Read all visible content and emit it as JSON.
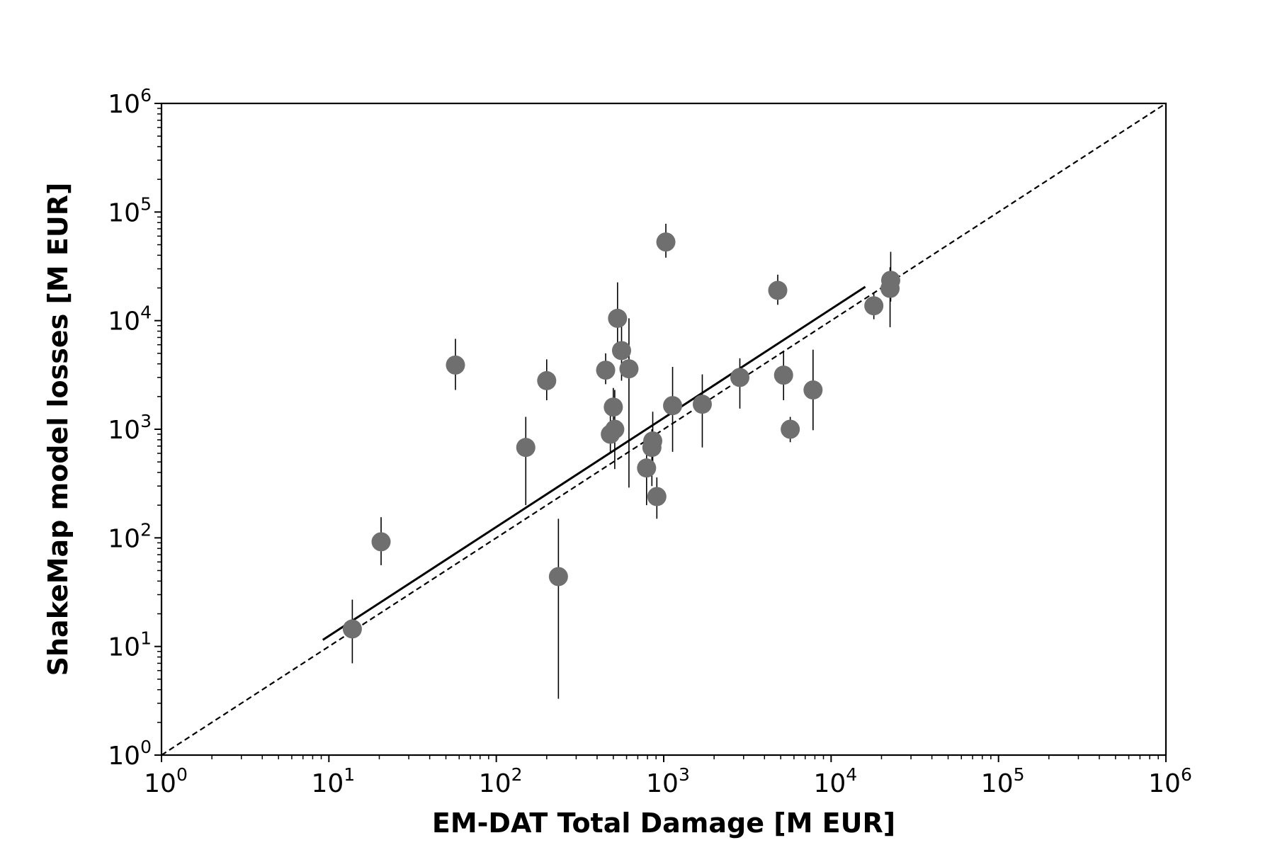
{
  "chart_data": {
    "type": "scatter",
    "xlabel": "EM-DAT Total Damage [M EUR]",
    "ylabel": "ShakeMap model losses [M EUR]",
    "xscale": "log",
    "yscale": "log",
    "xlim": [
      1,
      1000000
    ],
    "ylim": [
      1,
      1000000
    ],
    "x_tick_labels": [
      {
        "value": 1,
        "base": "10",
        "exp": "0"
      },
      {
        "value": 10,
        "base": "10",
        "exp": "1"
      },
      {
        "value": 100,
        "base": "10",
        "exp": "2"
      },
      {
        "value": 1000,
        "base": "10",
        "exp": "3"
      },
      {
        "value": 10000,
        "base": "10",
        "exp": "4"
      },
      {
        "value": 100000,
        "base": "10",
        "exp": "5"
      },
      {
        "value": 1000000,
        "base": "10",
        "exp": "6"
      }
    ],
    "y_tick_labels": [
      {
        "value": 1,
        "base": "10",
        "exp": "0"
      },
      {
        "value": 10,
        "base": "10",
        "exp": "1"
      },
      {
        "value": 100,
        "base": "10",
        "exp": "2"
      },
      {
        "value": 1000,
        "base": "10",
        "exp": "3"
      },
      {
        "value": 10000,
        "base": "10",
        "exp": "4"
      },
      {
        "value": 100000,
        "base": "10",
        "exp": "5"
      },
      {
        "value": 1000000,
        "base": "10",
        "exp": "6"
      }
    ],
    "grid": false,
    "marker_color": "#6f6f6f",
    "points": [
      {
        "x": 13.8,
        "y": 14.5,
        "ylo": 7,
        "yhi": 27
      },
      {
        "x": 20.5,
        "y": 92,
        "ylo": 56,
        "yhi": 155
      },
      {
        "x": 57,
        "y": 3900,
        "ylo": 2300,
        "yhi": 6800
      },
      {
        "x": 150,
        "y": 680,
        "ylo": 200,
        "yhi": 1300
      },
      {
        "x": 200,
        "y": 2800,
        "ylo": 1850,
        "yhi": 4400
      },
      {
        "x": 235,
        "y": 44,
        "ylo": 3.3,
        "yhi": 150
      },
      {
        "x": 450,
        "y": 3500,
        "ylo": 2600,
        "yhi": 5000
      },
      {
        "x": 480,
        "y": 900,
        "ylo": 600,
        "yhi": 1500
      },
      {
        "x": 500,
        "y": 1600,
        "ylo": 800,
        "yhi": 2400
      },
      {
        "x": 510,
        "y": 1000,
        "ylo": 430,
        "yhi": 2300
      },
      {
        "x": 530,
        "y": 10500,
        "ylo": 4700,
        "yhi": 22500
      },
      {
        "x": 560,
        "y": 5300,
        "ylo": 2800,
        "yhi": 9000
      },
      {
        "x": 620,
        "y": 3600,
        "ylo": 290,
        "yhi": 10500
      },
      {
        "x": 790,
        "y": 440,
        "ylo": 200,
        "yhi": 700
      },
      {
        "x": 850,
        "y": 680,
        "ylo": 300,
        "yhi": 1000
      },
      {
        "x": 860,
        "y": 780,
        "ylo": 420,
        "yhi": 1450
      },
      {
        "x": 910,
        "y": 240,
        "ylo": 150,
        "yhi": 360
      },
      {
        "x": 1030,
        "y": 53000,
        "ylo": 38000,
        "yhi": 78000
      },
      {
        "x": 1130,
        "y": 1650,
        "ylo": 620,
        "yhi": 3750
      },
      {
        "x": 1700,
        "y": 1700,
        "ylo": 680,
        "yhi": 3200
      },
      {
        "x": 2850,
        "y": 3000,
        "ylo": 1550,
        "yhi": 4500
      },
      {
        "x": 4800,
        "y": 19000,
        "ylo": 14000,
        "yhi": 26500
      },
      {
        "x": 5200,
        "y": 3150,
        "ylo": 1850,
        "yhi": 5300
      },
      {
        "x": 5700,
        "y": 1000,
        "ylo": 760,
        "yhi": 1300
      },
      {
        "x": 7800,
        "y": 2300,
        "ylo": 980,
        "yhi": 5400
      },
      {
        "x": 18000,
        "y": 13700,
        "ylo": 10300,
        "yhi": 17800
      },
      {
        "x": 22500,
        "y": 19800,
        "ylo": 8700,
        "yhi": 31000
      },
      {
        "x": 22700,
        "y": 23500,
        "ylo": 15000,
        "yhi": 43000
      }
    ],
    "fit_line": {
      "x": [
        9.2,
        16000
      ],
      "y": [
        11.5,
        20500
      ],
      "style": "solid"
    },
    "identity_line": {
      "x": [
        1,
        1000000
      ],
      "y": [
        1,
        1000000
      ],
      "style": "dashed"
    }
  }
}
